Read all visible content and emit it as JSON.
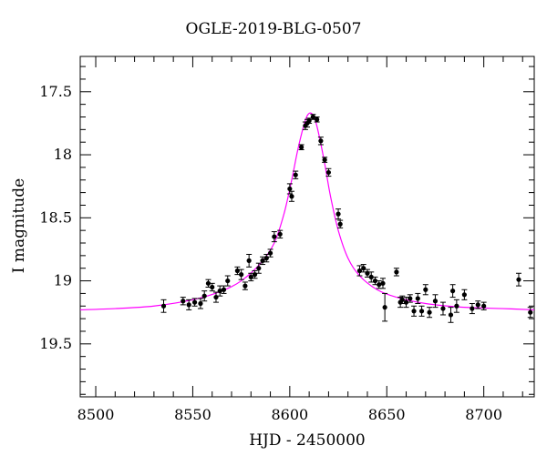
{
  "chart_data": {
    "type": "scatter",
    "title": "OGLE-2019-BLG-0507",
    "xlabel": "HJD - 2450000",
    "ylabel": "I magnitude",
    "xlim": [
      8492,
      8726
    ],
    "ylim": [
      19.92,
      17.22
    ],
    "y_inverted": true,
    "xticks": [
      8500,
      8550,
      8600,
      8650,
      8700
    ],
    "yticks": [
      17.5,
      18,
      18.5,
      19,
      19.5
    ],
    "grid": false,
    "legend": "none",
    "colors": {
      "data": "#000000",
      "model": "#ff00ff"
    },
    "model_curve": {
      "name": "model",
      "x": [
        8492,
        8510,
        8530,
        8550,
        8565,
        8575,
        8585,
        8592,
        8597,
        8601,
        8604,
        8607,
        8609,
        8611,
        8613,
        8615,
        8618,
        8621,
        8625,
        8630,
        8636,
        8645,
        8655,
        8670,
        8690,
        8710,
        8726
      ],
      "y": [
        19.23,
        19.22,
        19.2,
        19.15,
        19.08,
        19.0,
        18.86,
        18.7,
        18.47,
        18.2,
        17.97,
        17.78,
        17.69,
        17.67,
        17.72,
        17.84,
        18.07,
        18.33,
        18.6,
        18.82,
        18.96,
        19.07,
        19.13,
        19.18,
        19.21,
        19.22,
        19.23
      ]
    },
    "series": [
      {
        "name": "data",
        "x": [
          8535,
          8545,
          8548,
          8551,
          8554,
          8556,
          8558,
          8560,
          8562,
          8564,
          8566,
          8568,
          8573,
          8575,
          8577,
          8579,
          8580,
          8582,
          8584,
          8586,
          8588,
          8590,
          8592,
          8595,
          8600,
          8601,
          8603,
          8606,
          8608,
          8609,
          8610,
          8612,
          8614,
          8616,
          8618,
          8620,
          8625,
          8626,
          8636,
          8638,
          8640,
          8642,
          8644,
          8646,
          8648,
          8649,
          8655,
          8657,
          8658,
          8660,
          8662,
          8664,
          8666,
          8668,
          8670,
          8672,
          8675,
          8679,
          8683,
          8684,
          8686,
          8690,
          8694,
          8697,
          8700,
          8718,
          8724
        ],
        "y": [
          19.2,
          19.16,
          19.19,
          19.17,
          19.18,
          19.12,
          19.02,
          19.05,
          19.13,
          19.08,
          19.07,
          19.0,
          18.92,
          18.95,
          19.04,
          18.84,
          18.97,
          18.95,
          18.9,
          18.84,
          18.82,
          18.78,
          18.65,
          18.63,
          18.27,
          18.33,
          18.16,
          17.94,
          17.77,
          17.75,
          17.73,
          17.7,
          17.72,
          17.89,
          18.04,
          18.14,
          18.47,
          18.55,
          18.92,
          18.9,
          18.94,
          18.97,
          19.0,
          19.03,
          19.02,
          19.21,
          18.93,
          19.17,
          19.15,
          19.17,
          19.14,
          19.24,
          19.14,
          19.24,
          19.07,
          19.25,
          19.16,
          19.22,
          19.27,
          19.08,
          19.2,
          19.11,
          19.22,
          19.19,
          19.2,
          18.99,
          19.25
        ],
        "yerr": [
          0.05,
          0.03,
          0.04,
          0.03,
          0.04,
          0.04,
          0.03,
          0.03,
          0.04,
          0.04,
          0.03,
          0.04,
          0.03,
          0.04,
          0.03,
          0.05,
          0.03,
          0.03,
          0.04,
          0.03,
          0.03,
          0.03,
          0.04,
          0.03,
          0.04,
          0.04,
          0.03,
          0.02,
          0.03,
          0.03,
          0.02,
          0.02,
          0.02,
          0.03,
          0.02,
          0.03,
          0.04,
          0.03,
          0.04,
          0.03,
          0.03,
          0.04,
          0.03,
          0.03,
          0.04,
          0.11,
          0.03,
          0.04,
          0.03,
          0.04,
          0.03,
          0.04,
          0.04,
          0.04,
          0.04,
          0.04,
          0.05,
          0.05,
          0.06,
          0.05,
          0.05,
          0.04,
          0.04,
          0.03,
          0.03,
          0.05,
          0.04
        ]
      }
    ]
  }
}
